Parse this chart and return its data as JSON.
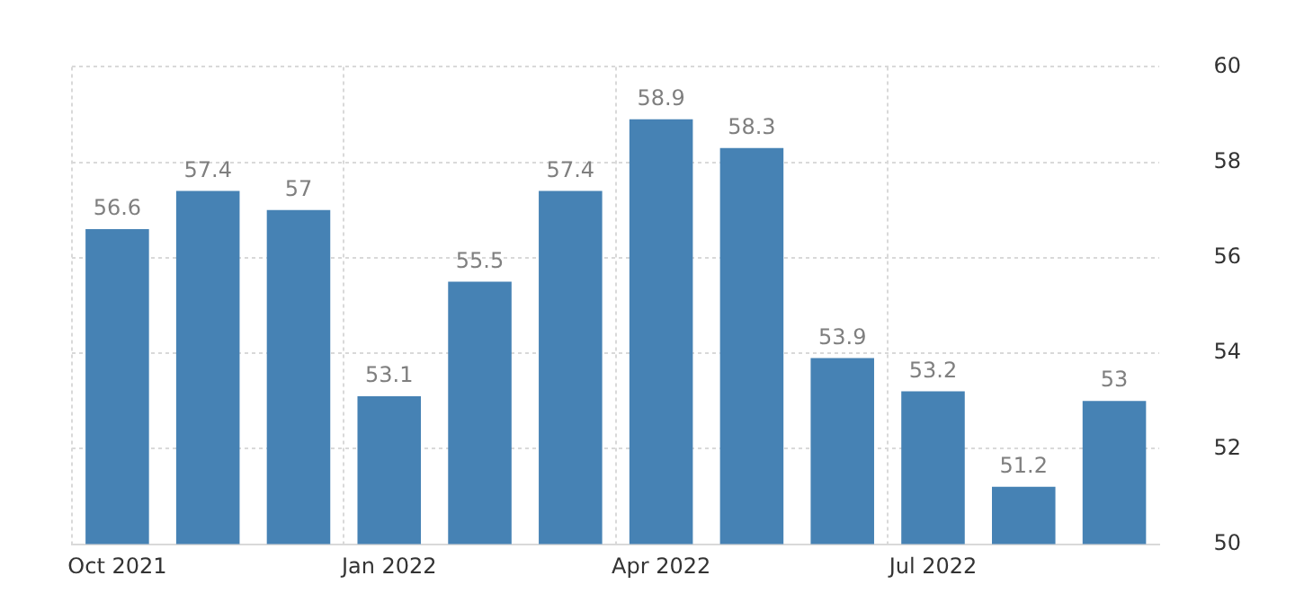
{
  "chart_data": {
    "type": "bar",
    "categories": [
      "Oct 2021",
      null,
      null,
      "Jan 2022",
      null,
      null,
      "Apr 2022",
      null,
      null,
      "Jul 2022",
      null,
      null
    ],
    "values": [
      56.6,
      57.4,
      57,
      53.1,
      55.5,
      57.4,
      58.9,
      58.3,
      53.9,
      53.2,
      51.2,
      53
    ],
    "color": "#4682b4",
    "ylim": [
      50,
      60
    ],
    "yticks": [
      50,
      52,
      54,
      56,
      58,
      60
    ],
    "grid": true,
    "data_labels": true,
    "legend": false
  }
}
